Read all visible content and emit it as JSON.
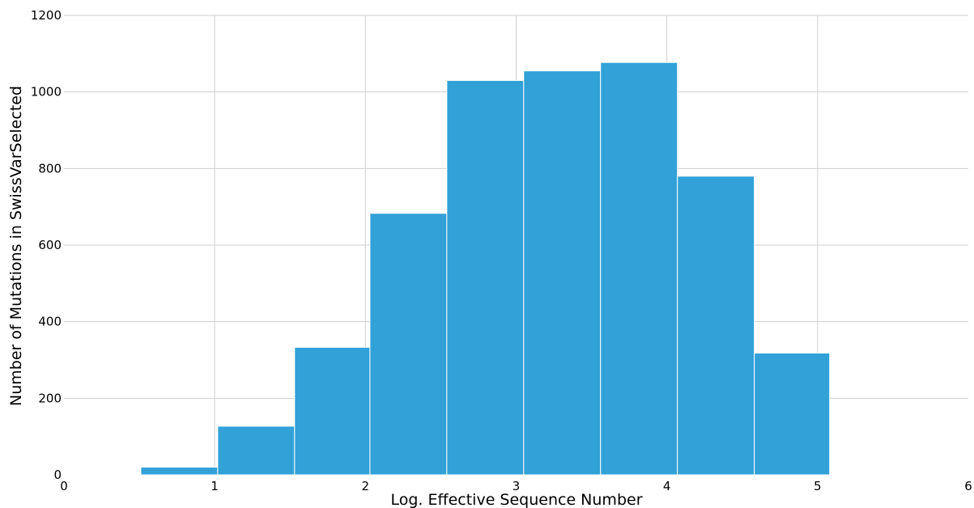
{
  "chart_data": {
    "type": "bar",
    "title": "",
    "xlabel": "Log. Effective Sequence Number",
    "ylabel": "Number of Mutations in SwissVarSelected",
    "xlim": [
      0,
      6
    ],
    "ylim": [
      0,
      1200
    ],
    "xticks": [
      0,
      1,
      2,
      3,
      4,
      5,
      6
    ],
    "yticks": [
      0,
      200,
      400,
      600,
      800,
      1000,
      1200
    ],
    "grid": true,
    "legend": "none",
    "bar_color": "#31a1d8",
    "bins": [
      {
        "x0": 0.51,
        "x1": 1.02,
        "value": 20
      },
      {
        "x0": 1.02,
        "x1": 1.53,
        "value": 127
      },
      {
        "x0": 1.53,
        "x1": 2.03,
        "value": 333
      },
      {
        "x0": 2.03,
        "x1": 2.54,
        "value": 683
      },
      {
        "x0": 2.54,
        "x1": 3.05,
        "value": 1030
      },
      {
        "x0": 3.05,
        "x1": 3.56,
        "value": 1055
      },
      {
        "x0": 3.56,
        "x1": 4.07,
        "value": 1077
      },
      {
        "x0": 4.07,
        "x1": 4.58,
        "value": 780
      },
      {
        "x0": 4.58,
        "x1": 5.08,
        "value": 318
      }
    ]
  }
}
